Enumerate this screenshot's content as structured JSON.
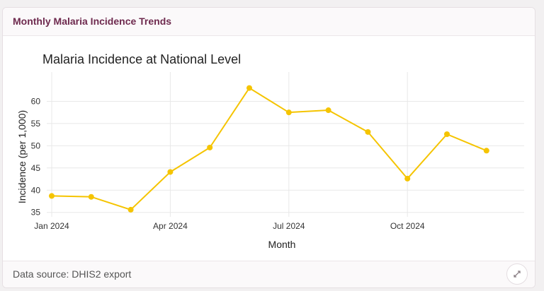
{
  "card": {
    "header_title": "Monthly Malaria Incidence Trends",
    "footer_text": "Data source: DHIS2 export",
    "expand_icon": "expand-icon"
  },
  "colors": {
    "line": "#f5c400",
    "title": "#6e2a4e",
    "grid": "#e8e8e8"
  },
  "chart_data": {
    "type": "line",
    "title": "Malaria Incidence at National Level",
    "xlabel": "Month",
    "ylabel": "Incidence (per 1,000)",
    "x": [
      "2024-01",
      "2024-02",
      "2024-03",
      "2024-04",
      "2024-05",
      "2024-06",
      "2024-07",
      "2024-08",
      "2024-09",
      "2024-10",
      "2024-11",
      "2024-12"
    ],
    "xtick_labels": [
      "Jan 2024",
      "Apr 2024",
      "Jul 2024",
      "Oct 2024"
    ],
    "xtick_positions": [
      "2024-01",
      "2024-04",
      "2024-07",
      "2024-10"
    ],
    "yticks": [
      35,
      40,
      45,
      50,
      55,
      60
    ],
    "ylim": [
      34,
      65
    ],
    "series": [
      {
        "values": [
          38.7,
          38.5,
          35.6,
          44.1,
          49.6,
          63.0,
          57.5,
          58.0,
          53.1,
          42.6,
          52.6,
          48.9
        ]
      }
    ],
    "grid": true,
    "legend": "none"
  }
}
